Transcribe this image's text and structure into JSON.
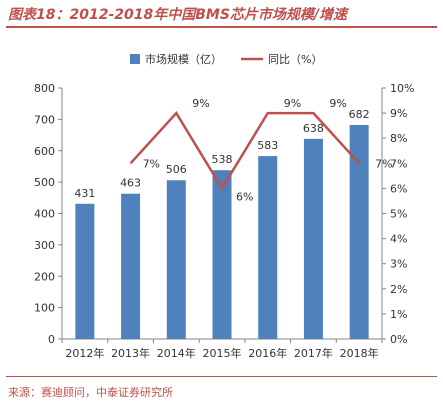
{
  "title": "图表18：2012-2018年中国BMS芯片市场规模/增速",
  "source": "来源：赛迪顾问，中泰证券研究所",
  "chart_data": {
    "type": "bar",
    "categories": [
      "2012年",
      "2013年",
      "2014年",
      "2015年",
      "2016年",
      "2017年",
      "2018年"
    ],
    "series": [
      {
        "name": "市场规模（亿）",
        "type": "bar",
        "axis": "left",
        "values": [
          431,
          463,
          506,
          538,
          583,
          638,
          682
        ],
        "color": "#4f81bd"
      },
      {
        "name": "同比（%）",
        "type": "line",
        "axis": "right",
        "values": [
          null,
          7,
          9,
          6,
          9,
          9,
          7
        ],
        "color": "#c0504d"
      }
    ],
    "bar_labels": [
      "431",
      "463",
      "506",
      "538",
      "583",
      "638",
      "682"
    ],
    "line_labels": [
      "",
      "7%",
      "9%",
      "6%",
      "9%",
      "9%",
      "7%"
    ],
    "ylim": [
      0,
      800
    ],
    "y_ticks": [
      "0",
      "100",
      "200",
      "300",
      "400",
      "500",
      "600",
      "700",
      "800"
    ],
    "y2lim": [
      0,
      10
    ],
    "y2_ticks": [
      "0%",
      "1%",
      "2%",
      "3%",
      "4%",
      "5%",
      "6%",
      "7%",
      "8%",
      "9%",
      "10%"
    ],
    "legend_position": "top",
    "grid": false
  }
}
